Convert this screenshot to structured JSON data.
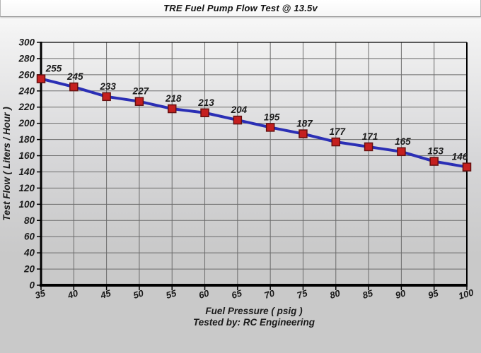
{
  "chart_data": {
    "type": "line",
    "title": "TRE Fuel Pump Flow Test @ 13.5v",
    "xlabel": "Fuel Pressure ( psig )",
    "ylabel": "Test Flow ( Liters / Hour )",
    "footer": "Tested by: RC Engineering",
    "x": [
      35,
      40,
      45,
      50,
      55,
      60,
      65,
      70,
      75,
      80,
      85,
      90,
      95,
      100
    ],
    "y": [
      255,
      245,
      233,
      227,
      218,
      213,
      204,
      195,
      187,
      177,
      171,
      165,
      153,
      146
    ],
    "xlim": [
      35,
      100
    ],
    "ylim": [
      0,
      300
    ],
    "xtick_step": 5,
    "ytick_step": 20,
    "grid": true,
    "legend": false,
    "point_labels": true,
    "colors": {
      "line": "#2b2fb5",
      "marker_fill": "#c51f1f",
      "marker_border": "#641010",
      "grid": "#6b6b6b",
      "axis": "#000000",
      "text": "#1a1a1a"
    }
  }
}
